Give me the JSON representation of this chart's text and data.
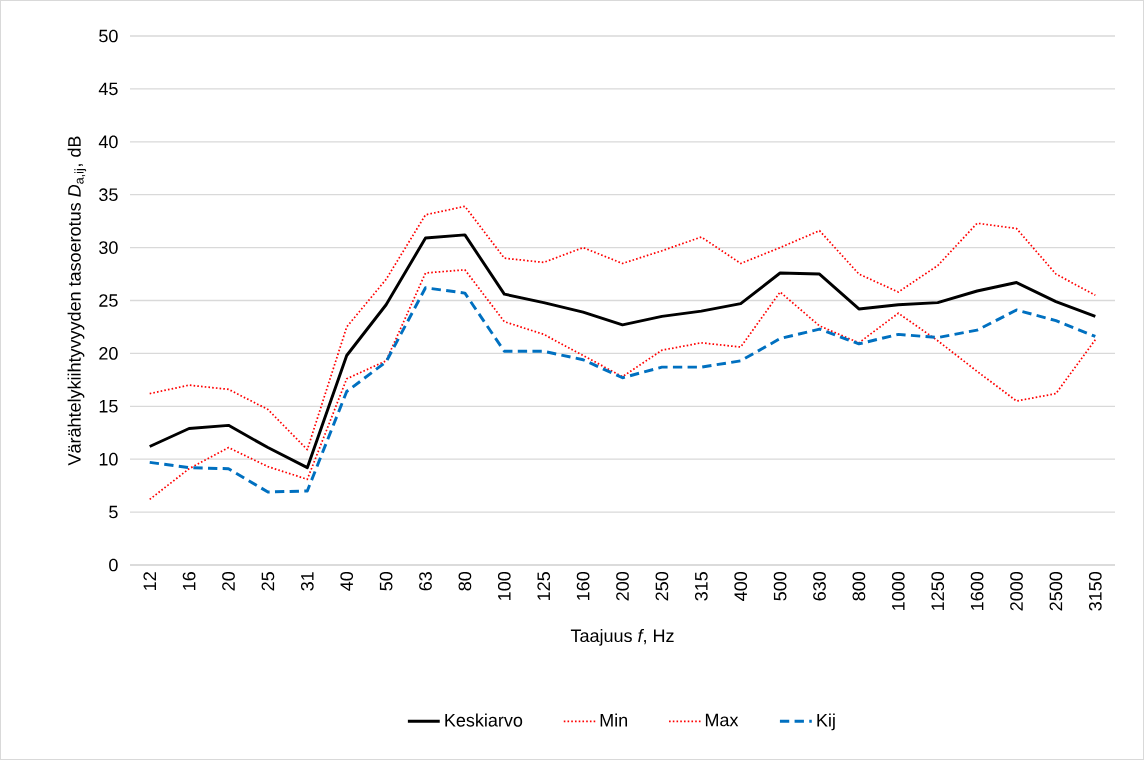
{
  "chart_data": {
    "type": "line",
    "xlabel": "Taajuus *f*, Hz",
    "ylabel": "Värähtelykiihtyvyyden tasoerotus *D*$_{a,ij}$, dB",
    "categories": [
      "12",
      "16",
      "20",
      "25",
      "31",
      "40",
      "50",
      "63",
      "80",
      "100",
      "125",
      "160",
      "200",
      "250",
      "315",
      "400",
      "500",
      "630",
      "800",
      "1000",
      "1250",
      "1600",
      "2000",
      "2500",
      "3150"
    ],
    "series": [
      {
        "name": "Keskiarvo",
        "color": "#000000",
        "line_style": "solid",
        "values": [
          11.2,
          12.9,
          13.2,
          11.1,
          9.2,
          19.8,
          24.6,
          30.9,
          31.2,
          25.6,
          24.8,
          23.9,
          22.7,
          23.5,
          24.0,
          24.7,
          27.6,
          27.5,
          24.2,
          24.6,
          24.8,
          25.9,
          26.7,
          24.9,
          23.5
        ]
      },
      {
        "name": "Min",
        "color": "#ff0000",
        "line_style": "dotted",
        "values": [
          6.2,
          9.1,
          11.1,
          9.3,
          8.1,
          17.6,
          19.3,
          27.6,
          27.9,
          23.0,
          21.8,
          19.8,
          17.8,
          20.3,
          21.0,
          20.6,
          25.8,
          22.6,
          21.0,
          23.8,
          21.2,
          18.3,
          15.5,
          16.2,
          21.3
        ]
      },
      {
        "name": "Max",
        "color": "#ff0000",
        "line_style": "dotted",
        "values": [
          16.2,
          17.0,
          16.6,
          14.7,
          10.9,
          22.5,
          27.0,
          33.1,
          33.9,
          29.0,
          28.6,
          30.0,
          28.5,
          29.7,
          31.0,
          28.5,
          30.0,
          31.6,
          27.5,
          25.8,
          28.3,
          32.3,
          31.8,
          27.5,
          25.5
        ]
      },
      {
        "name": "Kij",
        "color": "#0070c0",
        "line_style": "dashed",
        "values": [
          9.7,
          9.2,
          9.1,
          6.9,
          7.0,
          16.4,
          19.2,
          26.2,
          25.7,
          20.2,
          20.2,
          19.4,
          17.7,
          18.7,
          18.7,
          19.3,
          21.4,
          22.3,
          20.9,
          21.8,
          21.5,
          22.2,
          24.1,
          23.1,
          21.6
        ]
      }
    ],
    "ylim": [
      0,
      50
    ],
    "yticks": [
      0,
      5,
      10,
      15,
      20,
      25,
      30,
      35,
      40,
      45,
      50
    ],
    "grid": "y",
    "legend": "bottom"
  }
}
